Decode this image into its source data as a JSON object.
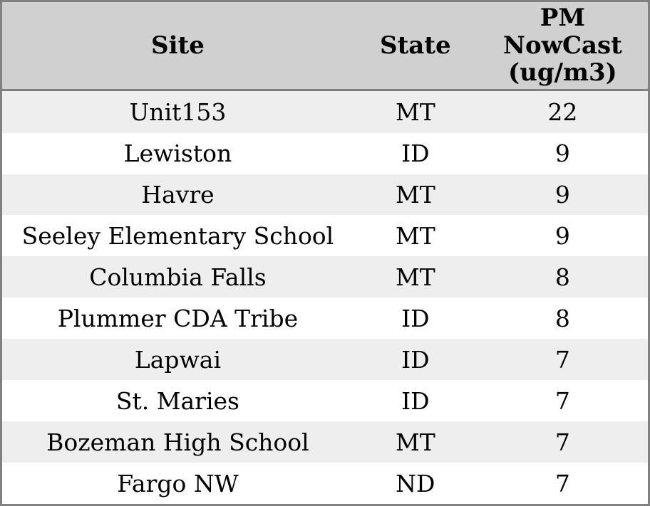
{
  "colors": {
    "header_bg": "#d0d0d0",
    "row_alt_bg": "#eeeeee",
    "row_bg": "#ffffff",
    "border": "#808080",
    "text": "#000000"
  },
  "table": {
    "columns": [
      {
        "key": "site",
        "label": "Site"
      },
      {
        "key": "state",
        "label": "State"
      },
      {
        "key": "pm_nowcast",
        "label": "PM NowCast (ug/m3)"
      }
    ],
    "rows": [
      {
        "site": "Unit153",
        "state": "MT",
        "pm_nowcast": "22"
      },
      {
        "site": "Lewiston",
        "state": "ID",
        "pm_nowcast": "9"
      },
      {
        "site": "Havre",
        "state": "MT",
        "pm_nowcast": "9"
      },
      {
        "site": "Seeley Elementary School",
        "state": "MT",
        "pm_nowcast": "9"
      },
      {
        "site": "Columbia Falls",
        "state": "MT",
        "pm_nowcast": "8"
      },
      {
        "site": "Plummer CDA Tribe",
        "state": "ID",
        "pm_nowcast": "8"
      },
      {
        "site": "Lapwai",
        "state": "ID",
        "pm_nowcast": "7"
      },
      {
        "site": "St. Maries",
        "state": "ID",
        "pm_nowcast": "7"
      },
      {
        "site": "Bozeman High School",
        "state": "MT",
        "pm_nowcast": "7"
      },
      {
        "site": "Fargo NW",
        "state": "ND",
        "pm_nowcast": "7"
      }
    ]
  },
  "chart_data": {
    "type": "table",
    "columns": [
      "Site",
      "State",
      "PM NowCast (ug/m3)"
    ],
    "rows": [
      [
        "Unit153",
        "MT",
        22
      ],
      [
        "Lewiston",
        "ID",
        9
      ],
      [
        "Havre",
        "MT",
        9
      ],
      [
        "Seeley Elementary School",
        "MT",
        9
      ],
      [
        "Columbia Falls",
        "MT",
        8
      ],
      [
        "Plummer CDA Tribe",
        "ID",
        8
      ],
      [
        "Lapwai",
        "ID",
        7
      ],
      [
        "St. Maries",
        "ID",
        7
      ],
      [
        "Bozeman High School",
        "MT",
        7
      ],
      [
        "Fargo NW",
        "ND",
        7
      ]
    ]
  }
}
